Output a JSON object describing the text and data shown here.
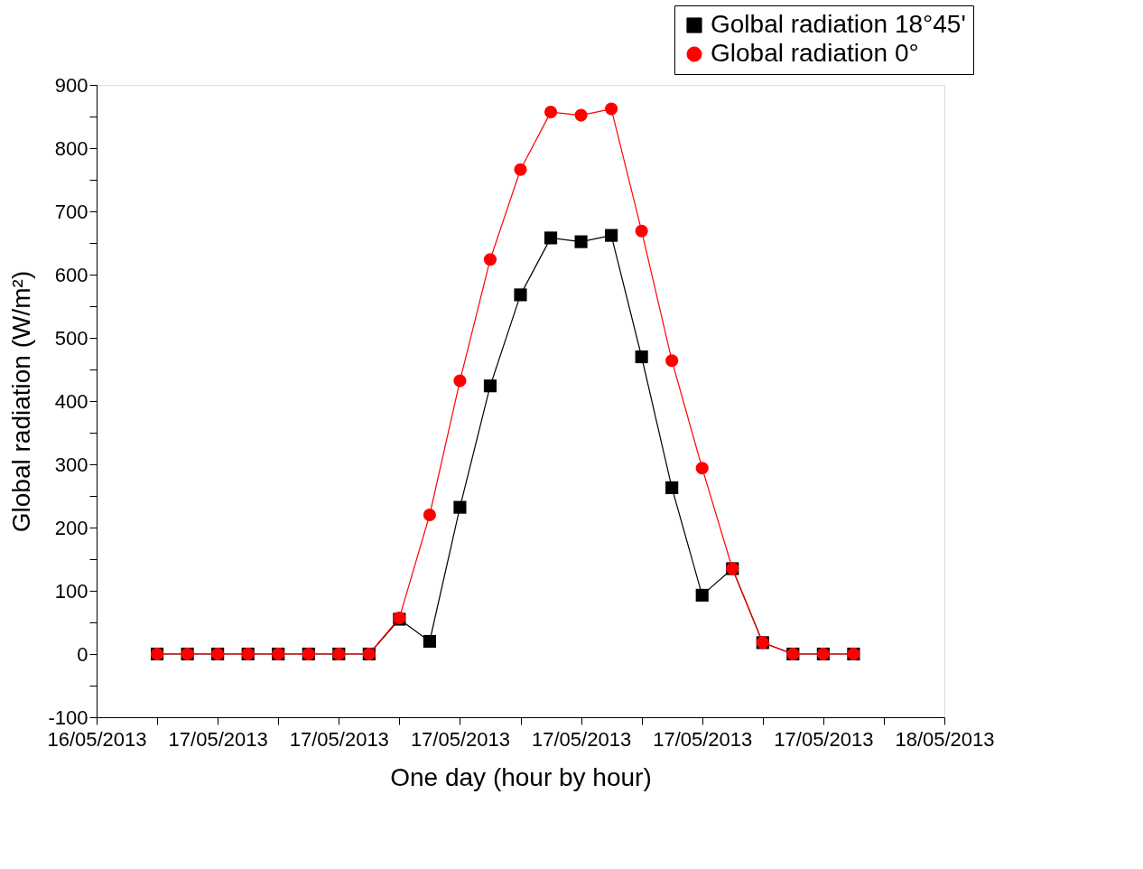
{
  "chart_data": {
    "type": "line",
    "xlabel": "One day (hour by hour)",
    "ylabel": "Global radiation (W/m²)",
    "x": [
      "2013-05-16T22:00",
      "2013-05-16T23:00",
      "2013-05-17T00:00",
      "2013-05-17T01:00",
      "2013-05-17T02:00",
      "2013-05-17T03:00",
      "2013-05-17T04:00",
      "2013-05-17T05:00",
      "2013-05-17T06:00",
      "2013-05-17T07:00",
      "2013-05-17T08:00",
      "2013-05-17T09:00",
      "2013-05-17T10:00",
      "2013-05-17T11:00",
      "2013-05-17T12:00",
      "2013-05-17T13:00",
      "2013-05-17T14:00",
      "2013-05-17T15:00",
      "2013-05-17T16:00",
      "2013-05-17T17:00",
      "2013-05-17T18:00",
      "2013-05-17T19:00",
      "2013-05-17T20:00",
      "2013-05-17T21:00"
    ],
    "series": [
      {
        "name": "Golbal radiation 18°45'",
        "color": "#000000",
        "marker": "square",
        "values": [
          0,
          0,
          0,
          0,
          0,
          0,
          0,
          0,
          55,
          20,
          232,
          424,
          568,
          658,
          652,
          662,
          470,
          263,
          93,
          135,
          18,
          0,
          0,
          0
        ]
      },
      {
        "name": "Global radiation 0°",
        "color": "#ff0000",
        "marker": "circle",
        "values": [
          0,
          0,
          0,
          0,
          0,
          0,
          0,
          0,
          57,
          220,
          432,
          624,
          766,
          857,
          852,
          862,
          669,
          464,
          294,
          135,
          18,
          0,
          0,
          0
        ]
      }
    ],
    "xlim": [
      "2013-05-16T20:00",
      "2013-05-18T00:00"
    ],
    "xticks": [
      {
        "value": "2013-05-16T20:00",
        "label": "16/05/2013"
      },
      {
        "value": "2013-05-16T22:00",
        "label": null
      },
      {
        "value": "2013-05-17T00:00",
        "label": "17/05/2013"
      },
      {
        "value": "2013-05-17T02:00",
        "label": null
      },
      {
        "value": "2013-05-17T04:00",
        "label": "17/05/2013"
      },
      {
        "value": "2013-05-17T06:00",
        "label": null
      },
      {
        "value": "2013-05-17T08:00",
        "label": "17/05/2013"
      },
      {
        "value": "2013-05-17T10:00",
        "label": null
      },
      {
        "value": "2013-05-17T12:00",
        "label": "17/05/2013"
      },
      {
        "value": "2013-05-17T14:00",
        "label": null
      },
      {
        "value": "2013-05-17T16:00",
        "label": "17/05/2013"
      },
      {
        "value": "2013-05-17T18:00",
        "label": null
      },
      {
        "value": "2013-05-17T20:00",
        "label": "17/05/2013"
      },
      {
        "value": "2013-05-17T22:00",
        "label": null
      },
      {
        "value": "2013-05-18T00:00",
        "label": "18/05/2013"
      }
    ],
    "ylim": [
      -100,
      900
    ],
    "yticks": [
      -100,
      {
        "value": -50,
        "label": null
      },
      0,
      {
        "value": 50,
        "label": null
      },
      100,
      {
        "value": 150,
        "label": null
      },
      200,
      {
        "value": 250,
        "label": null
      },
      300,
      {
        "value": 350,
        "label": null
      },
      400,
      {
        "value": 450,
        "label": null
      },
      500,
      {
        "value": 550,
        "label": null
      },
      600,
      {
        "value": 650,
        "label": null
      },
      700,
      {
        "value": 750,
        "label": null
      },
      800,
      {
        "value": 850,
        "label": null
      },
      900
    ],
    "grid": false,
    "legend": "top right",
    "line_style": "solid"
  }
}
